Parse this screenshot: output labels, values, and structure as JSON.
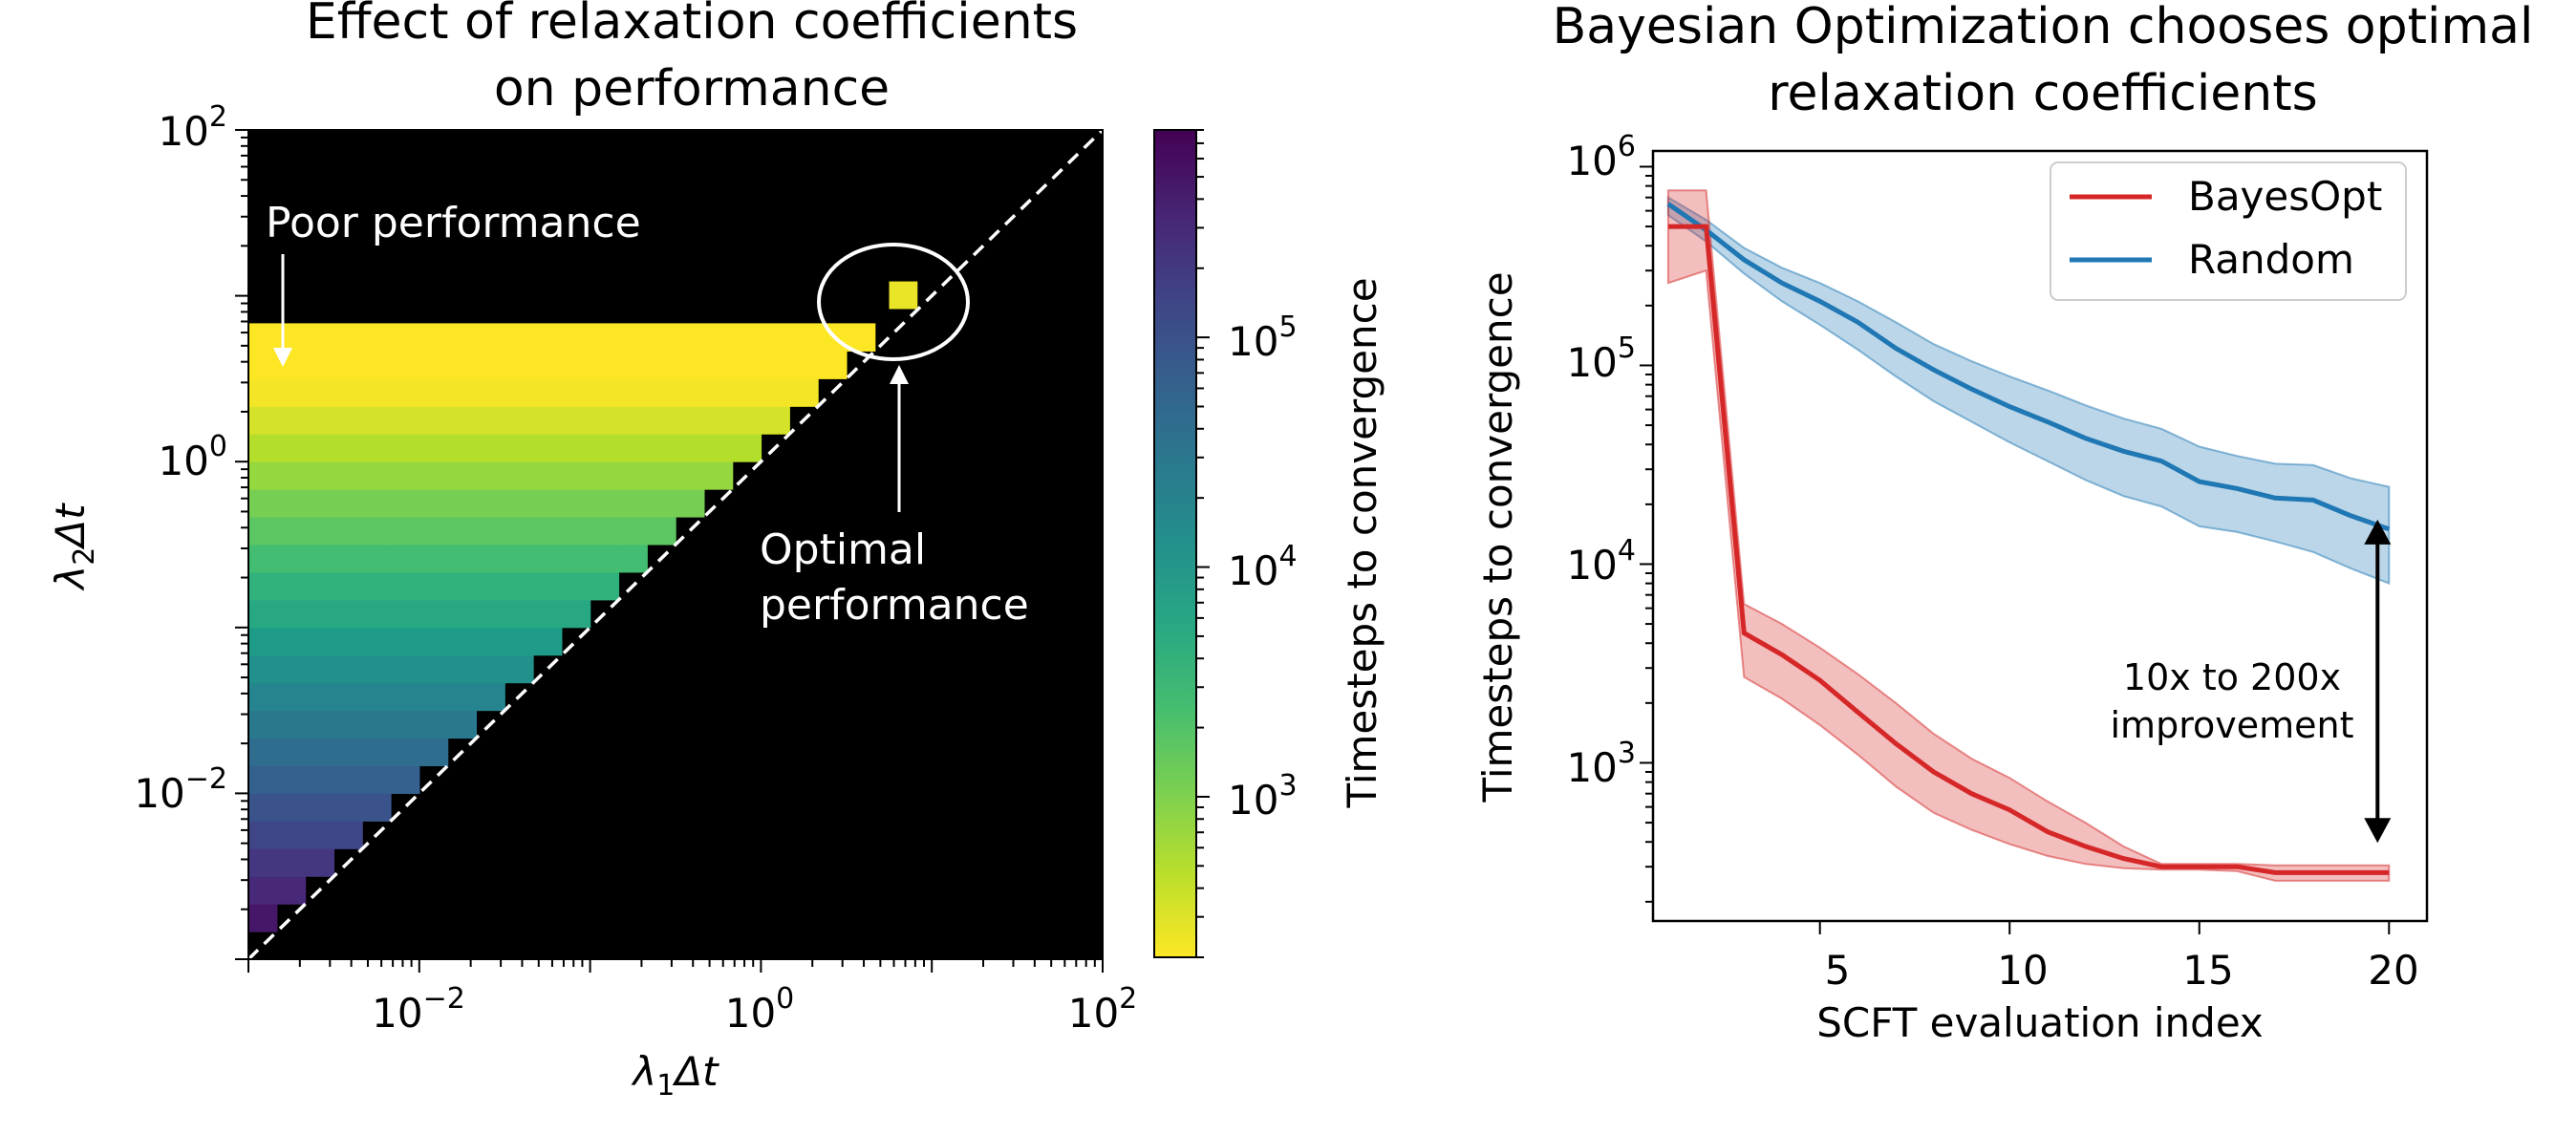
{
  "chart_data": [
    {
      "type": "heatmap",
      "title": [
        "Effect of relaxation coefficients",
        "on performance"
      ],
      "xlabel_var": "λ",
      "xlabel_sub": "1",
      "xlabel_rest": "Δt",
      "ylabel_var": "λ",
      "ylabel_sub": "2",
      "ylabel_rest": "Δt",
      "xscale": "log",
      "yscale": "log",
      "xlim": [
        0.001,
        100
      ],
      "ylim": [
        0.001,
        100
      ],
      "xticks": [
        {
          "base": "10",
          "exp": "−2",
          "value": 0.01
        },
        {
          "base": "10",
          "exp": "0",
          "value": 1
        },
        {
          "base": "10",
          "exp": "2",
          "value": 100
        }
      ],
      "yticks": [
        {
          "base": "10",
          "exp": "−2",
          "value": 0.01
        },
        {
          "base": "10",
          "exp": "0",
          "value": 1
        },
        {
          "base": "10",
          "exp": "2",
          "value": 100
        }
      ],
      "grid_step_log10": 0.1667,
      "upper_bound_log10_lambda2": 0.67,
      "optimal_cell": {
        "log10_lambda1": 0.75,
        "log10_lambda2": 0.92,
        "value": 250
      },
      "masked_color": "#000000",
      "diagonal": "dashed white line λ2 = λ1",
      "colorscale": "viridis_r",
      "colorbar": {
        "label": "Timesteps to convergence",
        "scale": "log",
        "range": [
          200,
          800000
        ],
        "ticks": [
          {
            "base": "10",
            "exp": "3",
            "value": 1000
          },
          {
            "base": "10",
            "exp": "4",
            "value": 10000
          },
          {
            "base": "10",
            "exp": "5",
            "value": 100000
          }
        ]
      },
      "annotations": [
        {
          "text": "Poor performance",
          "target": "top-left region"
        },
        {
          "text": [
            "Optimal",
            "performance"
          ],
          "target": "circled optimal cell"
        }
      ]
    },
    {
      "type": "line",
      "title": [
        "Bayesian Optimization chooses optimal",
        "relaxation coefficients"
      ],
      "xlabel": "SCFT evaluation index",
      "ylabel": "Timesteps to convergence",
      "xlim": [
        0.6,
        21
      ],
      "ylim": [
        160,
        1200000
      ],
      "yscale": "log",
      "xticks": [
        5,
        10,
        15,
        20
      ],
      "yticks": [
        {
          "base": "10",
          "exp": "3",
          "value": 1000
        },
        {
          "base": "10",
          "exp": "4",
          "value": 10000
        },
        {
          "base": "10",
          "exp": "5",
          "value": 100000
        },
        {
          "base": "10",
          "exp": "6",
          "value": 1000000
        }
      ],
      "x": [
        1,
        2,
        3,
        4,
        5,
        6,
        7,
        8,
        9,
        10,
        11,
        12,
        13,
        14,
        15,
        16,
        17,
        18,
        19,
        20
      ],
      "series": [
        {
          "name": "BayesOpt",
          "color": "#d62728",
          "values": [
            500000,
            500000,
            4500,
            3500,
            2600,
            1800,
            1250,
            900,
            700,
            580,
            450,
            380,
            330,
            300,
            300,
            300,
            280,
            280,
            280,
            280
          ],
          "lower": [
            260000,
            300000,
            2700,
            2100,
            1550,
            1100,
            760,
            560,
            460,
            390,
            340,
            310,
            295,
            290,
            290,
            285,
            255,
            255,
            255,
            255
          ],
          "upper": [
            760000,
            760000,
            6300,
            5000,
            3800,
            2800,
            2000,
            1400,
            1050,
            840,
            640,
            500,
            380,
            310,
            310,
            310,
            305,
            305,
            305,
            305
          ]
        },
        {
          "name": "Random",
          "color": "#1f77b4",
          "values": [
            650000,
            480000,
            340000,
            260000,
            210000,
            165000,
            122000,
            95000,
            76000,
            62000,
            52000,
            43000,
            37000,
            33000,
            26000,
            24000,
            21500,
            21000,
            17500,
            15000
          ],
          "lower": [
            570000,
            420000,
            290000,
            210000,
            160000,
            120000,
            88000,
            66000,
            52000,
            41000,
            33000,
            26500,
            22000,
            19500,
            15500,
            14500,
            13000,
            11500,
            9500,
            8000
          ],
          "upper": [
            700000,
            540000,
            390000,
            310000,
            260000,
            210000,
            165000,
            128000,
            105000,
            88000,
            75000,
            63000,
            54000,
            48000,
            39000,
            35000,
            32000,
            31500,
            27000,
            24500
          ]
        }
      ],
      "legend_position": "top-right",
      "annotation": {
        "text": [
          "10x to 200x",
          "improvement"
        ],
        "x": 20,
        "from": 290,
        "to": 15000
      }
    }
  ]
}
